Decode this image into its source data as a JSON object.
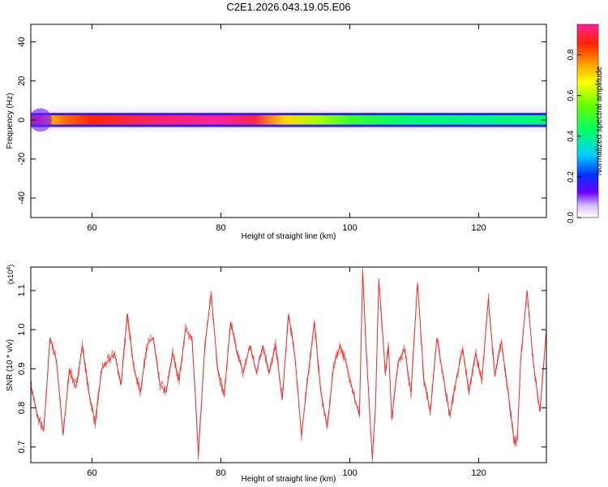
{
  "title": "C2E1.2026.043.19.05.E06",
  "chart_data": [
    {
      "type": "heatmap",
      "xlabel": "Height of straight line (km)",
      "ylabel": "Frequency (Hz)",
      "xlim": [
        50.5,
        130.5
      ],
      "ylim": [
        -50,
        49
      ],
      "xticks": [
        60,
        80,
        100,
        120
      ],
      "yticks": [
        -40,
        -20,
        0,
        20,
        40
      ],
      "ridge_frequency_hz": 0,
      "ridge_halfwidth_hz": [
        6,
        4,
        3,
        3,
        3,
        3,
        3,
        3,
        3,
        3
      ],
      "ridge_amplitude_profile": {
        "km": [
          50.5,
          52,
          54,
          56,
          60,
          70,
          80,
          85,
          90,
          95,
          100,
          105,
          110,
          120,
          130.5
        ],
        "amplitude": [
          0.9,
          0.95,
          0.75,
          0.8,
          0.85,
          0.92,
          0.95,
          0.9,
          0.7,
          0.6,
          0.5,
          0.45,
          0.42,
          0.4,
          0.42
        ]
      },
      "colorbar": {
        "label": "Normalized spectral amplitude",
        "range": [
          0,
          0.95
        ],
        "ticks": [
          0.0,
          0.2,
          0.4,
          0.6,
          0.8
        ]
      }
    },
    {
      "type": "line",
      "xlabel": "Height of straight line (km)",
      "ylabel": "SNR (10 * v/v)",
      "multiplier": "(x10",
      "multiplier_exp": "4",
      "multiplier_close": ")",
      "xlim": [
        50.5,
        130.5
      ],
      "ylim": [
        0.66,
        1.16
      ],
      "xticks": [
        60,
        80,
        100,
        120
      ],
      "yticks": [
        0.7,
        0.8,
        0.9,
        1.0,
        1.1
      ],
      "series": [
        {
          "name": "SNR",
          "color": "#ee3333",
          "x": [
            50.5,
            51.5,
            52.5,
            53.5,
            54.5,
            55.5,
            56.5,
            57.5,
            58.5,
            59.5,
            60.5,
            61.5,
            62.5,
            63.5,
            64.5,
            65.5,
            66.5,
            67.5,
            68.5,
            69.5,
            70.5,
            71.5,
            72.5,
            73.5,
            74.5,
            75.5,
            76.0,
            76.5,
            77.5,
            78.5,
            79.5,
            80.5,
            81.5,
            82.5,
            83.5,
            84.5,
            85.5,
            86.5,
            87.5,
            88.5,
            89.5,
            90.5,
            91.5,
            92.5,
            93.5,
            94.5,
            95.5,
            96.5,
            97.5,
            98.5,
            99.5,
            100.5,
            101.5,
            102.0,
            102.5,
            103.5,
            104.0,
            104.5,
            105.5,
            106.0,
            106.5,
            107.5,
            108.5,
            109.5,
            110.5,
            111.5,
            112.5,
            113.5,
            114.5,
            115.5,
            116.5,
            117.5,
            118.5,
            119.5,
            120.5,
            121.5,
            122.5,
            123.5,
            124.5,
            125.5,
            126.0,
            126.5,
            127.5,
            128.5,
            129.5,
            130.5
          ],
          "y": [
            0.86,
            0.78,
            0.74,
            0.98,
            0.92,
            0.73,
            0.9,
            0.85,
            0.96,
            0.84,
            0.76,
            0.9,
            0.92,
            0.94,
            0.86,
            1.04,
            0.9,
            0.84,
            0.96,
            0.98,
            0.86,
            0.84,
            0.94,
            0.87,
            1.0,
            0.98,
            0.84,
            0.68,
            0.96,
            1.09,
            0.9,
            0.83,
            1.02,
            0.94,
            0.89,
            0.96,
            0.89,
            0.96,
            0.89,
            0.96,
            0.82,
            1.04,
            0.93,
            0.73,
            0.88,
            1.02,
            0.84,
            0.75,
            0.91,
            0.96,
            0.91,
            0.84,
            0.78,
            1.15,
            0.96,
            0.67,
            0.81,
            1.13,
            0.89,
            0.96,
            0.77,
            0.92,
            0.95,
            0.84,
            1.12,
            0.87,
            0.79,
            0.98,
            0.88,
            0.78,
            0.87,
            0.95,
            0.84,
            0.94,
            0.87,
            1.08,
            0.88,
            0.97,
            0.85,
            0.71,
            0.72,
            0.92,
            1.1,
            0.91,
            0.79,
            1.0
          ]
        }
      ]
    }
  ]
}
